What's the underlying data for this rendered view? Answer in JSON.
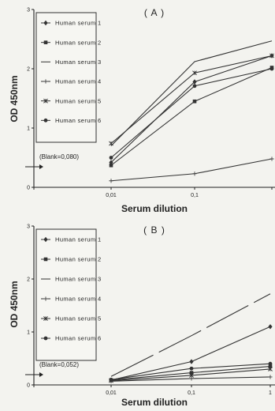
{
  "chart_data": [
    {
      "type": "line",
      "panel_label": "( A )",
      "xlabel": "Serum dilution",
      "ylabel": "OD 450nm",
      "x_scale": "log",
      "x": [
        0.01,
        0.1,
        1
      ],
      "x_tick_labels": [
        "0,01",
        "0,1"
      ],
      "ylim": [
        0,
        3
      ],
      "y_ticks": [
        0,
        1,
        2,
        3
      ],
      "blank_label": "(Blank=0,080)",
      "blank_value": 0.08,
      "legend_placement": "top-left",
      "series": [
        {
          "name": "Human serum 1",
          "marker": "diamond",
          "values": [
            0.42,
            1.78,
            2.22
          ]
        },
        {
          "name": "Human serum 2",
          "marker": "square",
          "values": [
            0.37,
            1.45,
            2.02
          ]
        },
        {
          "name": "Human serum 3",
          "marker": "none",
          "values": [
            0.7,
            2.12,
            2.47
          ]
        },
        {
          "name": "Human serum 4",
          "marker": "cross",
          "values": [
            0.11,
            0.23,
            0.48
          ]
        },
        {
          "name": "Human serum 5",
          "marker": "star",
          "values": [
            0.74,
            1.93,
            2.22
          ]
        },
        {
          "name": "Human serum 6",
          "marker": "circle",
          "values": [
            0.5,
            1.71,
            2.0
          ]
        }
      ]
    },
    {
      "type": "line",
      "panel_label": "( B )",
      "xlabel": "Serum dilution",
      "ylabel": "OD 450nm",
      "x_scale": "log",
      "x": [
        0.01,
        0.1,
        1
      ],
      "x_tick_labels": [
        "0,01",
        "0,1",
        "1"
      ],
      "ylim": [
        0,
        3
      ],
      "y_ticks": [
        0,
        1,
        2,
        3
      ],
      "blank_label": "(Blank=0,052)",
      "blank_value": 0.052,
      "legend_placement": "top-left",
      "series": [
        {
          "name": "Human serum 1",
          "marker": "diamond",
          "values": [
            0.09,
            0.44,
            1.1
          ]
        },
        {
          "name": "Human serum 2",
          "marker": "square",
          "values": [
            0.09,
            0.23,
            0.35
          ]
        },
        {
          "name": "Human serum 3",
          "marker": "none",
          "values": [
            0.16,
            0.93,
            1.72
          ]
        },
        {
          "name": "Human serum 4",
          "marker": "cross",
          "values": [
            0.07,
            0.12,
            0.15
          ]
        },
        {
          "name": "Human serum 5",
          "marker": "star",
          "values": [
            0.08,
            0.18,
            0.3
          ]
        },
        {
          "name": "Human serum 6",
          "marker": "circle",
          "values": [
            0.1,
            0.31,
            0.4
          ]
        }
      ]
    }
  ]
}
